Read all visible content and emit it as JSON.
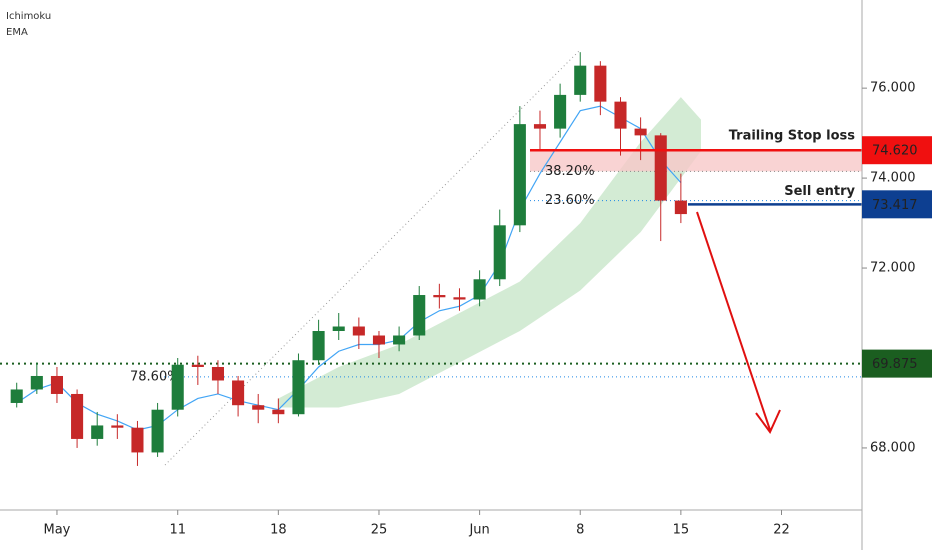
{
  "chart_data": {
    "type": "candlestick",
    "indicators": [
      "Ichimoku",
      "EMA"
    ],
    "up_color": "#1e7d3c",
    "down_color": "#c62828",
    "x": [
      -2,
      -1,
      0,
      1,
      2,
      3,
      4,
      5,
      6,
      7,
      8,
      9,
      10,
      11,
      12,
      13,
      14,
      15,
      16,
      17,
      18,
      19,
      20,
      21,
      22,
      23,
      24,
      25,
      26,
      27,
      28,
      29,
      30,
      31
    ],
    "open": [
      69.0,
      69.3,
      69.6,
      69.2,
      68.2,
      68.5,
      68.45,
      67.9,
      68.85,
      69.85,
      69.8,
      69.5,
      68.95,
      68.85,
      68.75,
      69.95,
      70.6,
      70.7,
      70.5,
      70.3,
      70.5,
      71.4,
      71.35,
      71.3,
      71.75,
      72.95,
      75.2,
      75.1,
      75.85,
      76.5,
      75.7,
      75.1,
      74.95,
      73.5
    ],
    "high": [
      69.45,
      69.9,
      69.8,
      69.3,
      68.8,
      68.75,
      68.6,
      69.0,
      70.0,
      70.05,
      69.95,
      69.6,
      69.2,
      69.1,
      70.1,
      70.85,
      71.0,
      70.9,
      70.6,
      70.7,
      71.6,
      71.65,
      71.55,
      71.95,
      73.3,
      75.6,
      75.5,
      76.1,
      76.8,
      76.6,
      75.8,
      75.35,
      75.0,
      74.1
    ],
    "low": [
      68.9,
      69.2,
      69.0,
      68.0,
      68.05,
      68.2,
      67.6,
      67.8,
      68.7,
      69.4,
      69.2,
      68.7,
      68.55,
      68.55,
      68.7,
      69.85,
      70.4,
      70.2,
      70.0,
      70.15,
      70.4,
      71.1,
      71.05,
      71.15,
      71.6,
      72.8,
      74.6,
      74.9,
      75.7,
      75.4,
      74.5,
      74.4,
      72.6,
      73.0
    ],
    "close": [
      69.3,
      69.6,
      69.2,
      68.2,
      68.5,
      68.45,
      67.9,
      68.85,
      69.85,
      69.8,
      69.5,
      68.95,
      68.85,
      68.75,
      69.95,
      70.6,
      70.7,
      70.5,
      70.3,
      70.5,
      71.4,
      71.35,
      71.3,
      71.75,
      72.95,
      75.2,
      75.1,
      75.85,
      76.5,
      75.7,
      75.1,
      74.95,
      73.5,
      73.2
    ],
    "ema": {
      "color": "#42a5f5",
      "values": [
        69.0,
        69.3,
        69.45,
        69.0,
        68.75,
        68.6,
        68.4,
        68.5,
        68.85,
        69.1,
        69.2,
        69.05,
        68.95,
        68.85,
        69.3,
        69.8,
        70.15,
        70.3,
        70.3,
        70.4,
        70.8,
        71.05,
        71.15,
        71.4,
        72.1,
        73.3,
        74.1,
        74.8,
        75.5,
        75.6,
        75.35,
        75.1,
        74.4,
        73.9
      ]
    },
    "cloud": {
      "color": "#c8e6c9",
      "x": [
        11,
        14,
        17,
        20,
        23,
        26,
        29,
        31,
        32
      ],
      "upper": [
        69.1,
        69.8,
        70.3,
        71.0,
        71.7,
        73.0,
        74.8,
        75.8,
        75.3
      ],
      "lower": [
        68.9,
        68.9,
        69.2,
        69.9,
        70.6,
        71.5,
        72.8,
        74.0,
        74.6
      ]
    },
    "xlim": [
      -2.83,
      40
    ],
    "xticks": [
      {
        "value": 0,
        "label": "May"
      },
      {
        "value": 6,
        "label": "11"
      },
      {
        "value": 11,
        "label": "18"
      },
      {
        "value": 16,
        "label": "25"
      },
      {
        "value": 21,
        "label": "Jun"
      },
      {
        "value": 26,
        "label": "8"
      },
      {
        "value": 31,
        "label": "15"
      },
      {
        "value": 36,
        "label": "22"
      }
    ],
    "ylim": [
      66.62,
      77.96
    ],
    "yticks": [
      {
        "value": 68,
        "label": "68.000"
      },
      {
        "value": 72,
        "label": "72.000"
      },
      {
        "value": 74,
        "label": "74.000"
      },
      {
        "value": 76,
        "label": "76.000"
      }
    ],
    "fib_levels": [
      {
        "label": "38.20%",
        "value": 74.15,
        "color": "#888888"
      },
      {
        "label": "23.60%",
        "value": 73.5,
        "color": "#1e88e5"
      },
      {
        "label": "78.60%",
        "value": 69.58,
        "color": "#1e88e5"
      }
    ],
    "stop_loss": {
      "text": "Trailing Stop loss",
      "value": 74.62,
      "label": "74.620",
      "zone_bottom": 74.15,
      "color": "#f01010"
    },
    "sell_entry": {
      "text": "Sell entry",
      "value": 73.417,
      "label": "73.417",
      "color": "#0d3f91"
    },
    "support": {
      "value": 69.875,
      "label": "69.875",
      "color": "#1b5e20"
    }
  }
}
